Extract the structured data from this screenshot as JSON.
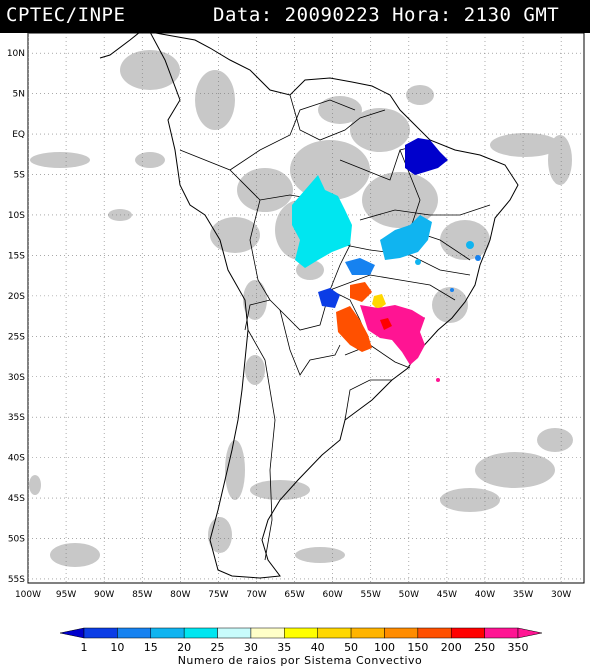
{
  "header": {
    "agency": "CPTEC/INPE",
    "datetime": "Data: 20090223 Hora: 2130 GMT"
  },
  "map": {
    "lat_labels": [
      "10N",
      "5N",
      "EQ",
      "5S",
      "10S",
      "15S",
      "20S",
      "25S",
      "30S",
      "35S",
      "40S",
      "45S",
      "50S",
      "55S"
    ],
    "lon_labels": [
      "100W",
      "95W",
      "90W",
      "85W",
      "80W",
      "75W",
      "70W",
      "65W",
      "60W",
      "55W",
      "50W",
      "45W",
      "40W",
      "35W",
      "30W"
    ],
    "lat_values": [
      10,
      5,
      0,
      -5,
      -10,
      -15,
      -20,
      -25,
      -30,
      -35,
      -40,
      -45,
      -50,
      -55
    ],
    "lon_values": [
      -100,
      -95,
      -90,
      -85,
      -80,
      -75,
      -70,
      -65,
      -60,
      -55,
      -50,
      -45,
      -40,
      -35,
      -30
    ],
    "cloud_color": "#c8c8c8",
    "border_color": "#000000",
    "grid_color": "#777777"
  },
  "legend": {
    "title": "Numero de raios por Sistema Convectivo",
    "labels": [
      "1",
      "10",
      "15",
      "20",
      "25",
      "30",
      "35",
      "40",
      "50",
      "100",
      "150",
      "200",
      "250",
      "350"
    ],
    "colors": [
      "#0000cc",
      "#0b3de6",
      "#1682f0",
      "#10b4f0",
      "#00e6f0",
      "#c8fbfb",
      "#ffffc8",
      "#ffff00",
      "#ffd700",
      "#ffb400",
      "#ff8c00",
      "#ff5000",
      "#ff0000",
      "#ff1493",
      "#ff1493"
    ]
  }
}
